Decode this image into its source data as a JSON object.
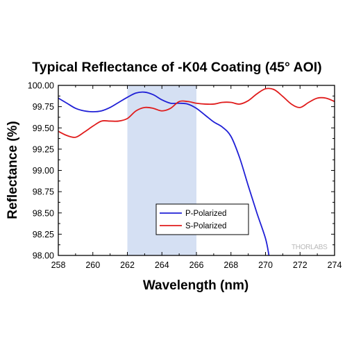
{
  "chart_data": {
    "type": "line",
    "title": "Typical Reflectance of -K04 Coating (45° AOI)",
    "xlabel": "Wavelength (nm)",
    "ylabel": "Reflectance (%)",
    "xlim": [
      258,
      274
    ],
    "ylim": [
      98.0,
      100.0
    ],
    "x_ticks": [
      "258",
      "260",
      "262",
      "264",
      "266",
      "268",
      "270",
      "272",
      "274"
    ],
    "y_ticks": [
      "98.00",
      "98.25",
      "98.50",
      "98.75",
      "99.00",
      "99.25",
      "99.50",
      "99.75",
      "100.00"
    ],
    "highlight_band": [
      262,
      266
    ],
    "legend_position": "lower-center",
    "grid": false,
    "series": [
      {
        "name": "P-Polarized",
        "color": "#1f1fd6",
        "x": [
          258,
          258.5,
          259,
          259.5,
          260,
          260.5,
          261,
          261.5,
          262,
          262.5,
          263,
          263.5,
          264,
          264.5,
          265,
          265.5,
          266,
          266.5,
          267,
          267.5,
          268,
          268.5,
          269,
          269.5,
          270,
          270.2
        ],
        "y": [
          99.85,
          99.79,
          99.73,
          99.7,
          99.69,
          99.7,
          99.74,
          99.8,
          99.86,
          99.91,
          99.92,
          99.89,
          99.83,
          99.79,
          99.79,
          99.78,
          99.73,
          99.65,
          99.57,
          99.51,
          99.4,
          99.15,
          98.82,
          98.5,
          98.2,
          98.0
        ]
      },
      {
        "name": "S-Polarized",
        "color": "#e01b1b",
        "x": [
          258,
          258.5,
          259,
          259.5,
          260,
          260.5,
          261,
          261.5,
          262,
          262.5,
          263,
          263.5,
          264,
          264.5,
          265,
          265.5,
          266,
          266.5,
          267,
          267.5,
          268,
          268.5,
          269,
          269.5,
          270,
          270.5,
          271,
          271.5,
          272,
          272.5,
          273,
          273.5,
          274
        ],
        "y": [
          99.46,
          99.41,
          99.39,
          99.45,
          99.52,
          99.58,
          99.58,
          99.58,
          99.61,
          99.7,
          99.74,
          99.73,
          99.7,
          99.73,
          99.81,
          99.81,
          99.79,
          99.78,
          99.78,
          99.8,
          99.8,
          99.78,
          99.82,
          99.9,
          99.96,
          99.95,
          99.87,
          99.78,
          99.74,
          99.8,
          99.85,
          99.85,
          99.81
        ]
      }
    ]
  },
  "watermark": "THORLABS"
}
